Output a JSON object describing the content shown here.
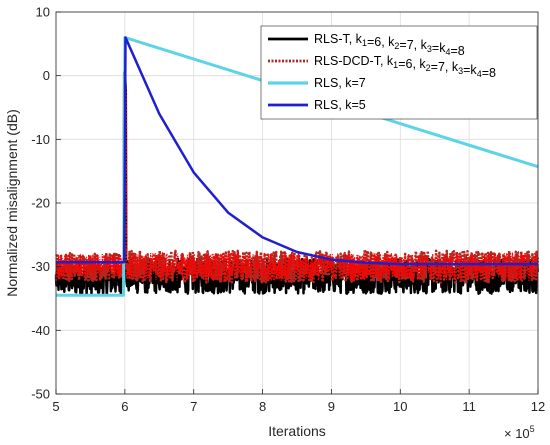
{
  "chart_data": {
    "type": "line",
    "xlabel": "Iterations",
    "ylabel": "Normalized misalignment (dB)",
    "x_exponent_label": "× 10",
    "x_exponent_power": "5",
    "xlim": [
      5,
      12
    ],
    "ylim": [
      -50,
      10
    ],
    "xticks": [
      5,
      6,
      7,
      8,
      9,
      10,
      11,
      12
    ],
    "yticks": [
      -50,
      -40,
      -30,
      -20,
      -10,
      0,
      10
    ],
    "grid": true,
    "legend_position": "top-right",
    "series": [
      {
        "name": "RLS-T, k1=6, k2=7, k3=k4=8",
        "legend_parts": [
          [
            "RLS-T, k",
            ""
          ],
          [
            "1",
            "sub"
          ],
          [
            "=6, k",
            ""
          ],
          [
            "2",
            "sub"
          ],
          [
            "=7, k",
            ""
          ],
          [
            "3",
            "sub"
          ],
          [
            "=k",
            ""
          ],
          [
            "4",
            "sub"
          ],
          [
            "=8",
            ""
          ]
        ],
        "color": "#000000",
        "style": "solid",
        "width": 2.5,
        "noise": {
          "before_mean": -32,
          "before_amp": 5,
          "after_mean": -31.5,
          "after_amp": 5.5,
          "peak_x": 6.05,
          "peak_y": 0.5
        }
      },
      {
        "name": "RLS-DCD-T, k1=6, k2=7, k3=k4=8",
        "legend_parts": [
          [
            "RLS-DCD-T, k",
            ""
          ],
          [
            "1",
            "sub"
          ],
          [
            "=6, k",
            ""
          ],
          [
            "2",
            "sub"
          ],
          [
            "=7, k",
            ""
          ],
          [
            "3",
            "sub"
          ],
          [
            "=k",
            ""
          ],
          [
            "4",
            "sub"
          ],
          [
            "=8",
            ""
          ]
        ],
        "color": "#b5261e",
        "style": "dotted",
        "width": 2.5,
        "noise": {
          "before_mean": -30,
          "before_amp": 4.5,
          "after_mean": -30,
          "after_amp": 5,
          "peak_x": 6.05,
          "peak_y": 0
        }
      },
      {
        "name": "RLS, k=7",
        "legend_parts": [
          [
            "RLS, k=7",
            ""
          ]
        ],
        "color": "#5dd3e8",
        "style": "solid",
        "width": 3,
        "points": [
          [
            5,
            -34.5
          ],
          [
            5.98,
            -34.5
          ],
          [
            6.0,
            6
          ],
          [
            12,
            -14.3
          ]
        ]
      },
      {
        "name": "RLS, k=5",
        "legend_parts": [
          [
            "RLS, k=5",
            ""
          ]
        ],
        "color": "#1f1fcf",
        "style": "solid",
        "width": 2.5,
        "points": [
          [
            5,
            -29.3
          ],
          [
            5.99,
            -29.3
          ],
          [
            6.01,
            6
          ],
          [
            6.5,
            -6
          ],
          [
            7,
            -15.2
          ],
          [
            7.5,
            -21.5
          ],
          [
            8,
            -25.4
          ],
          [
            8.5,
            -27.7
          ],
          [
            9,
            -28.9
          ],
          [
            9.5,
            -29.4
          ],
          [
            10,
            -29.6
          ],
          [
            11,
            -29.6
          ],
          [
            12,
            -29.6
          ]
        ]
      }
    ],
    "red_overlay_color": "#ff0000"
  }
}
